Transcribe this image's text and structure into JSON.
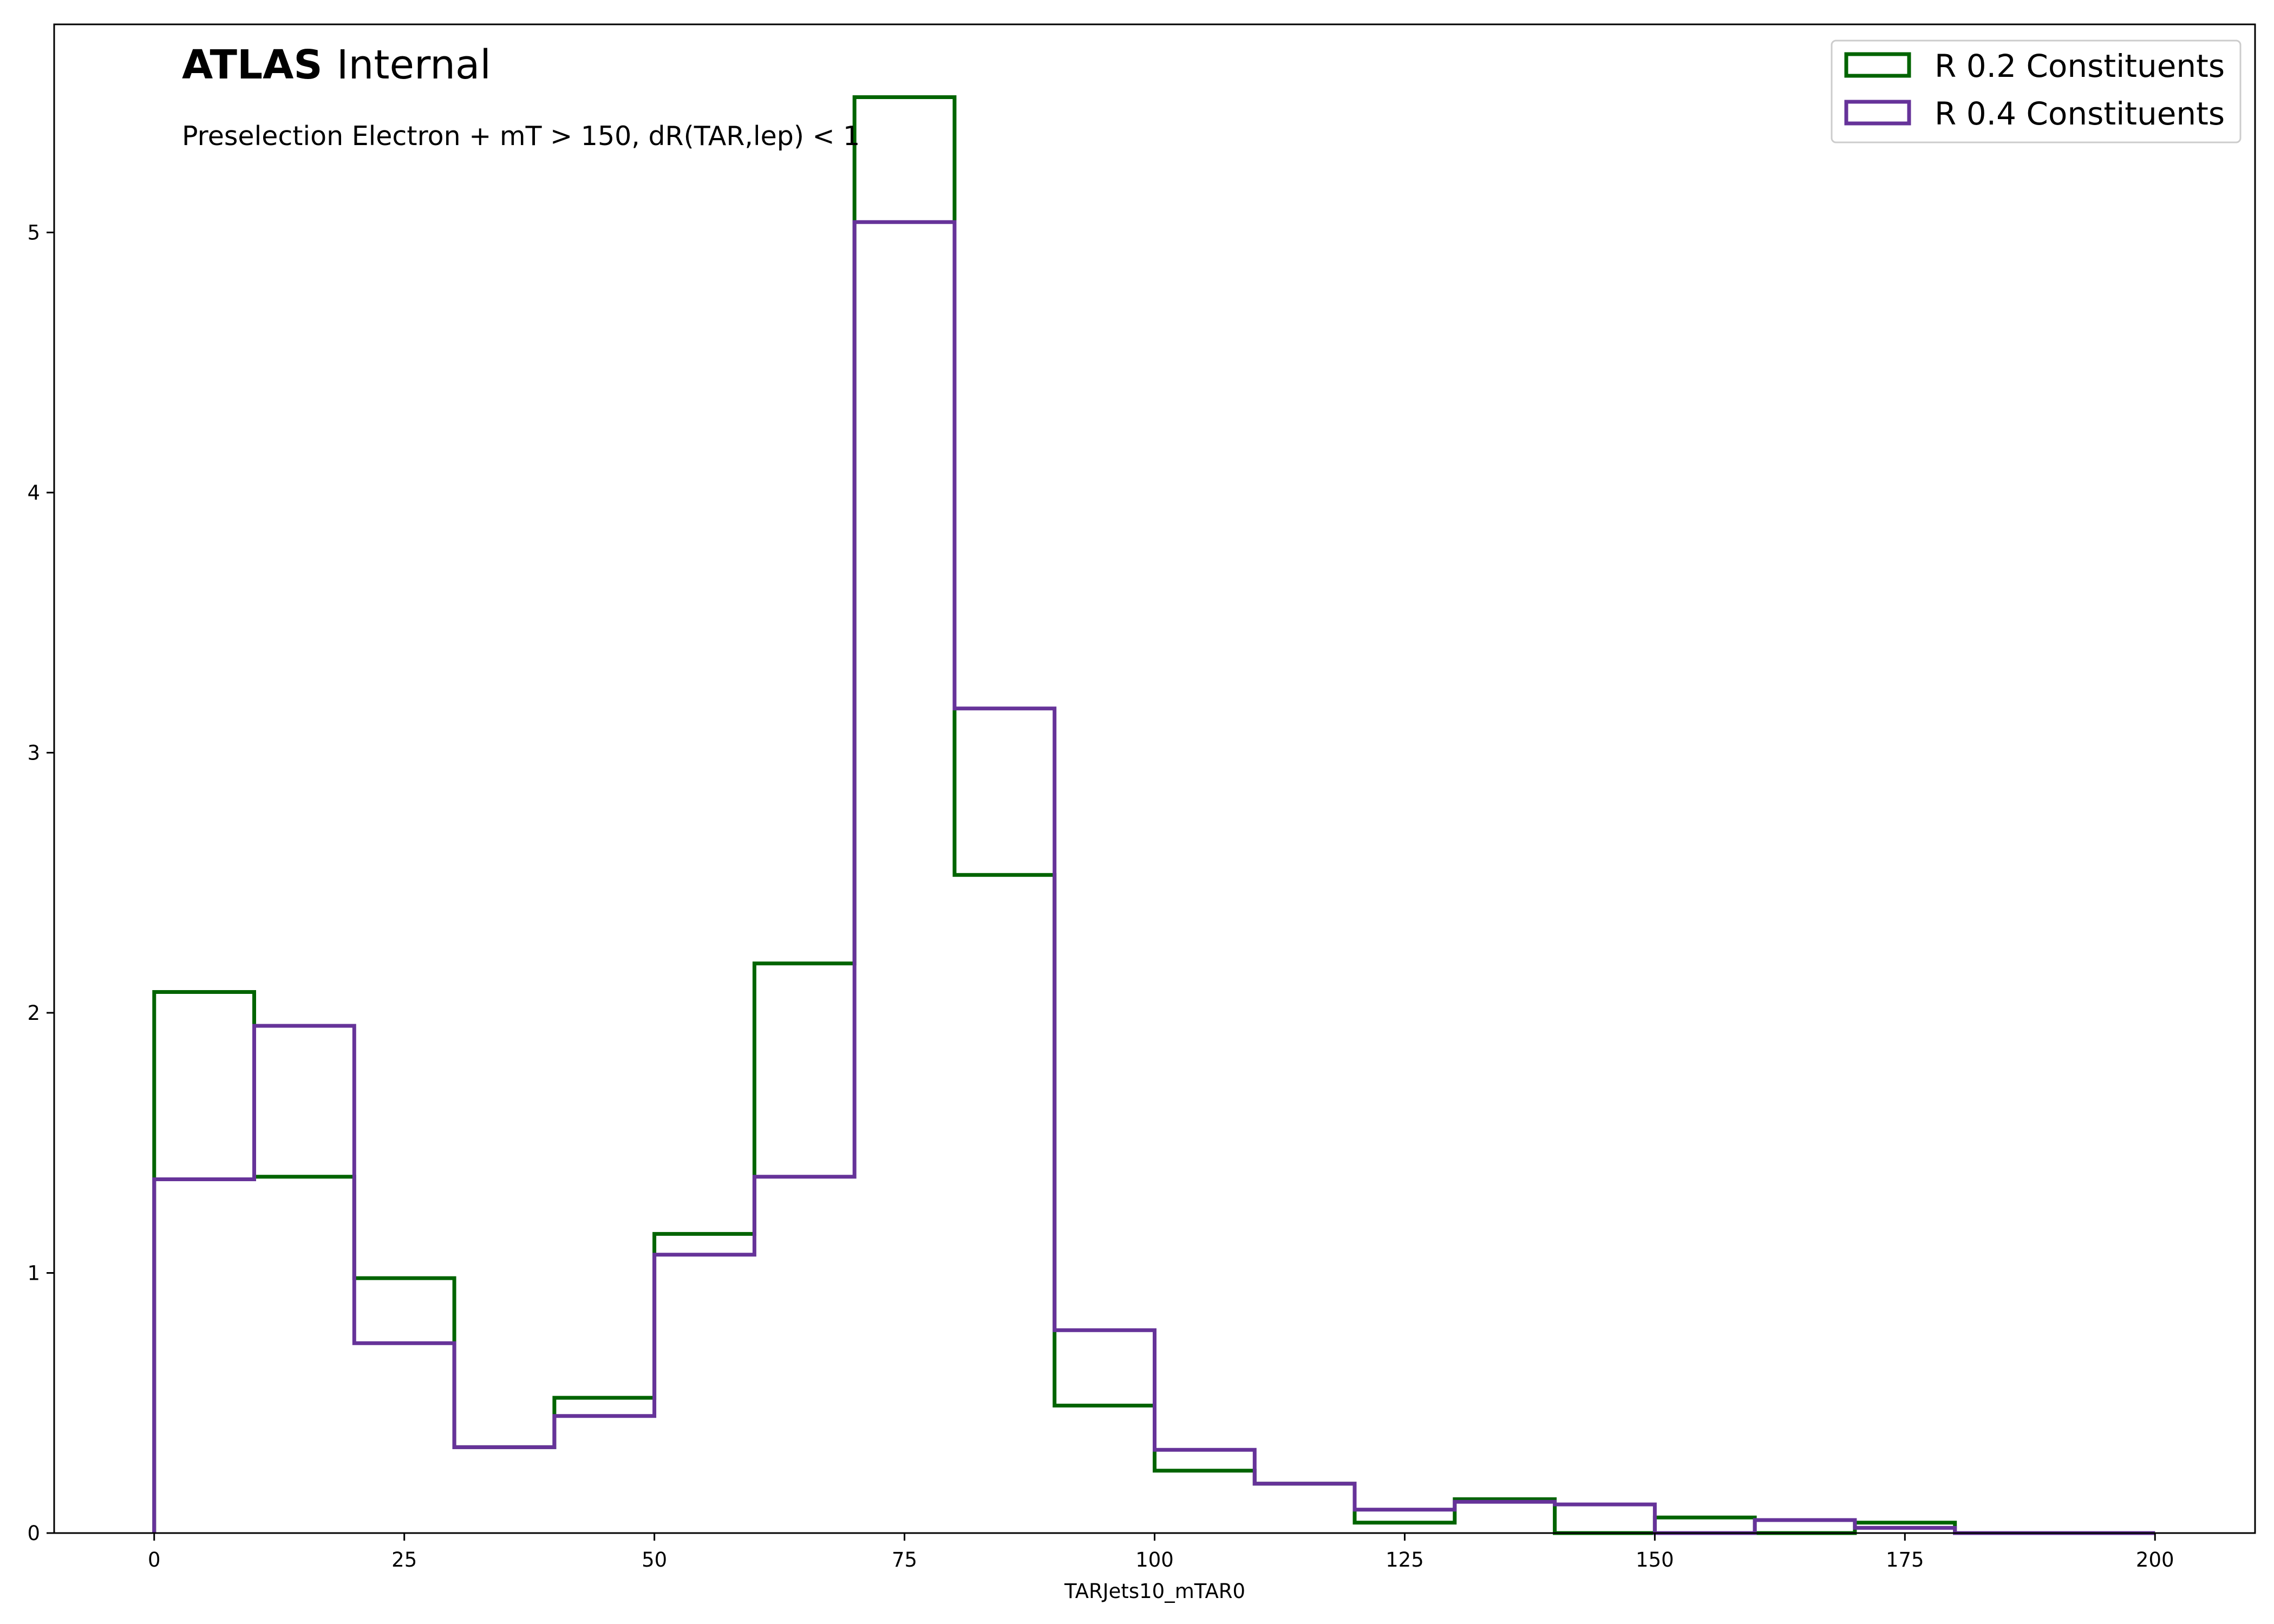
{
  "chart_data": {
    "type": "histogram",
    "title_bold": "ATLAS",
    "title_normal": "Internal",
    "subtitle": "Preselection Electron + mT > 150, dR(TAR,lep) < 1",
    "xlabel": "TARJets10_mTAR0",
    "ylabel": "",
    "xlim": [
      -10,
      210
    ],
    "ylim": [
      0,
      5.8
    ],
    "x_ticks": [
      0,
      25,
      50,
      75,
      100,
      125,
      150,
      175,
      200
    ],
    "y_ticks": [
      0,
      1,
      2,
      3,
      4,
      5
    ],
    "bin_edges": [
      0,
      10,
      20,
      30,
      40,
      50,
      60,
      70,
      80,
      90,
      100,
      110,
      120,
      130,
      140,
      150,
      160,
      170,
      180,
      190,
      200
    ],
    "legend_position": "top-right",
    "grid": false,
    "series": [
      {
        "name": "R 0.2 Constituents",
        "color": "#006400",
        "values": [
          2.08,
          1.37,
          0.98,
          0.33,
          0.52,
          1.15,
          2.19,
          5.52,
          2.53,
          0.49,
          0.24,
          0.19,
          0.04,
          0.13,
          0.0,
          0.06,
          0.0,
          0.04,
          0.0,
          0.0
        ]
      },
      {
        "name": "R 0.4 Constituents",
        "color": "#663399",
        "values": [
          1.36,
          1.95,
          0.73,
          0.33,
          0.45,
          1.07,
          1.37,
          5.04,
          3.17,
          0.78,
          0.32,
          0.19,
          0.09,
          0.12,
          0.11,
          0.0,
          0.05,
          0.02,
          0.0,
          0.0
        ]
      }
    ]
  }
}
